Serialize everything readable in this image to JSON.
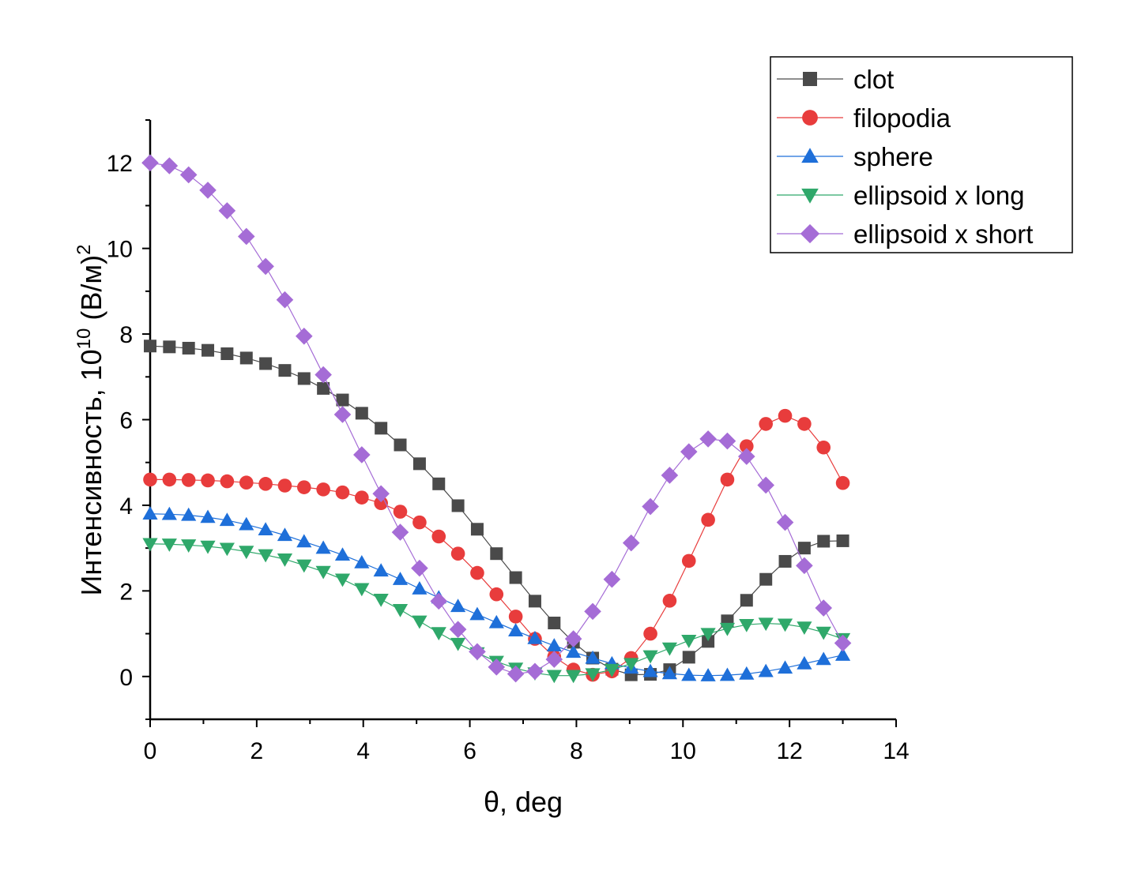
{
  "chart_data": {
    "type": "line",
    "xlabel": "θ, deg",
    "ylabel": "Интенсивность, 10",
    "ylabel_sup1": "10",
    "ylabel_tail": " (В/м)",
    "ylabel_sup2": "2",
    "xlim": [
      0,
      14
    ],
    "ylim": [
      -1,
      13
    ],
    "x_ticks": [
      "0",
      "2",
      "4",
      "6",
      "8",
      "10",
      "12",
      "14"
    ],
    "y_ticks": [
      "0",
      "2",
      "4",
      "6",
      "8",
      "10",
      "12"
    ],
    "grid": false,
    "legend_position": "top-right",
    "x": [
      0,
      0.361,
      0.722,
      1.083,
      1.444,
      1.806,
      2.167,
      2.528,
      2.889,
      3.25,
      3.611,
      3.972,
      4.333,
      4.694,
      5.056,
      5.417,
      5.778,
      6.139,
      6.5,
      6.861,
      7.222,
      7.583,
      7.944,
      8.306,
      8.667,
      9.028,
      9.389,
      9.75,
      10.111,
      10.472,
      10.833,
      11.194,
      11.556,
      11.917,
      12.278,
      12.639,
      13.0
    ],
    "series": [
      {
        "name": "clot",
        "color": "#4a4a4a",
        "marker": "square",
        "values": [
          7.72,
          7.7,
          7.67,
          7.62,
          7.54,
          7.44,
          7.31,
          7.15,
          6.96,
          6.73,
          6.46,
          6.15,
          5.8,
          5.41,
          4.97,
          4.5,
          3.99,
          3.44,
          2.87,
          2.31,
          1.76,
          1.25,
          0.8,
          0.43,
          0.17,
          0.04,
          0.05,
          0.16,
          0.45,
          0.82,
          1.3,
          1.78,
          2.27,
          2.69,
          3.0,
          3.16,
          3.17
        ]
      },
      {
        "name": "filopodia",
        "color": "#e83c3c",
        "marker": "circle",
        "values": [
          4.6,
          4.6,
          4.59,
          4.58,
          4.56,
          4.53,
          4.5,
          4.46,
          4.42,
          4.37,
          4.3,
          4.18,
          4.05,
          3.85,
          3.6,
          3.27,
          2.87,
          2.42,
          1.92,
          1.4,
          0.88,
          0.46,
          0.16,
          0.04,
          0.12,
          0.43,
          1.0,
          1.77,
          2.7,
          3.66,
          4.6,
          5.38,
          5.9,
          6.09,
          5.9,
          5.35,
          4.52
        ]
      },
      {
        "name": "sphere",
        "color": "#1e6fd9",
        "marker": "triangle-up",
        "values": [
          3.8,
          3.79,
          3.77,
          3.72,
          3.65,
          3.55,
          3.43,
          3.3,
          3.15,
          3.0,
          2.84,
          2.66,
          2.47,
          2.27,
          2.05,
          1.84,
          1.64,
          1.45,
          1.26,
          1.07,
          0.89,
          0.72,
          0.57,
          0.43,
          0.3,
          0.2,
          0.12,
          0.07,
          0.03,
          0.02,
          0.03,
          0.06,
          0.12,
          0.2,
          0.3,
          0.4,
          0.5
        ]
      },
      {
        "name": "ellipsoid x long",
        "color": "#2fa86a",
        "marker": "triangle-down",
        "values": [
          3.1,
          3.09,
          3.07,
          3.04,
          2.99,
          2.92,
          2.84,
          2.74,
          2.6,
          2.45,
          2.27,
          2.05,
          1.8,
          1.56,
          1.29,
          1.02,
          0.77,
          0.55,
          0.35,
          0.19,
          0.08,
          0.02,
          0.02,
          0.06,
          0.16,
          0.3,
          0.48,
          0.66,
          0.84,
          1.0,
          1.12,
          1.21,
          1.24,
          1.22,
          1.15,
          1.03,
          0.88
        ]
      },
      {
        "name": "ellipsoid x short",
        "color": "#a56cd6",
        "marker": "diamond",
        "values": [
          12.0,
          11.93,
          11.72,
          11.36,
          10.88,
          10.28,
          9.58,
          8.8,
          7.95,
          7.05,
          6.12,
          5.18,
          4.27,
          3.37,
          2.53,
          1.76,
          1.1,
          0.58,
          0.22,
          0.06,
          0.12,
          0.4,
          0.88,
          1.52,
          2.27,
          3.12,
          3.97,
          4.7,
          5.25,
          5.55,
          5.5,
          5.14,
          4.47,
          3.6,
          2.59,
          1.6,
          0.78
        ]
      }
    ]
  }
}
